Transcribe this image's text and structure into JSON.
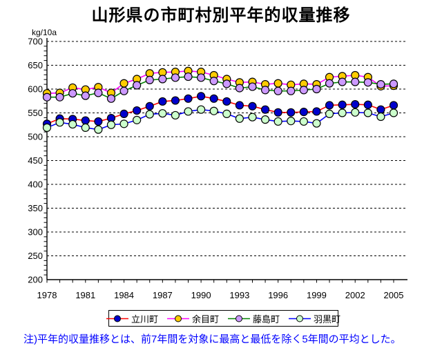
{
  "title": "山形県の市町村別平年的収量推移",
  "note": "注)平年的収量推移とは、前7年間を対象に最高と最低を除く5年間の平均とした。",
  "note_color": "#0000FF",
  "chart_data": {
    "type": "line",
    "title": "山形県の市町村別平年的収量推移",
    "ylabel": "kg/10a",
    "ylim": [
      200,
      700
    ],
    "ytick_interval": 50,
    "grid": "horizontal-dashed",
    "legend_position": "bottom",
    "x": [
      1978,
      1979,
      1980,
      1981,
      1982,
      1983,
      1984,
      1985,
      1986,
      1987,
      1988,
      1989,
      1990,
      1991,
      1992,
      1993,
      1994,
      1995,
      1996,
      1997,
      1998,
      1999,
      2000,
      2001,
      2002,
      2003,
      2004,
      2005
    ],
    "xtick_years": [
      1978,
      1981,
      1984,
      1987,
      1990,
      1993,
      1996,
      1999,
      2002,
      2005
    ],
    "series": [
      {
        "name": "立川町",
        "line_color": "#FF0000",
        "marker_color": "#0000CC",
        "values": [
          527,
          538,
          537,
          534,
          532,
          539,
          548,
          555,
          564,
          574,
          576,
          580,
          585,
          580,
          574,
          566,
          564,
          557,
          551,
          551,
          552,
          553,
          566,
          567,
          568,
          567,
          557,
          566
        ]
      },
      {
        "name": "余目町",
        "line_color": "#FF00FF",
        "marker_color": "#FFCC00",
        "values": [
          591,
          592,
          603,
          599,
          604,
          592,
          612,
          621,
          633,
          635,
          636,
          638,
          636,
          629,
          621,
          614,
          615,
          610,
          612,
          609,
          611,
          610,
          625,
          627,
          629,
          625,
          606,
          607
        ]
      },
      {
        "name": "藤島町",
        "line_color": "#008000",
        "marker_color": "#CC99FF",
        "values": [
          583,
          583,
          591,
          586,
          592,
          580,
          596,
          608,
          619,
          621,
          624,
          626,
          624,
          617,
          611,
          602,
          605,
          598,
          596,
          596,
          598,
          600,
          612,
          615,
          615,
          614,
          610,
          611
        ]
      },
      {
        "name": "羽黒町",
        "line_color": "#0000FF",
        "marker_color": "#CCFFCC",
        "values": [
          519,
          530,
          526,
          519,
          515,
          525,
          527,
          535,
          547,
          549,
          545,
          553,
          557,
          554,
          548,
          538,
          541,
          536,
          532,
          533,
          532,
          528,
          548,
          550,
          551,
          550,
          542,
          550
        ]
      }
    ]
  }
}
